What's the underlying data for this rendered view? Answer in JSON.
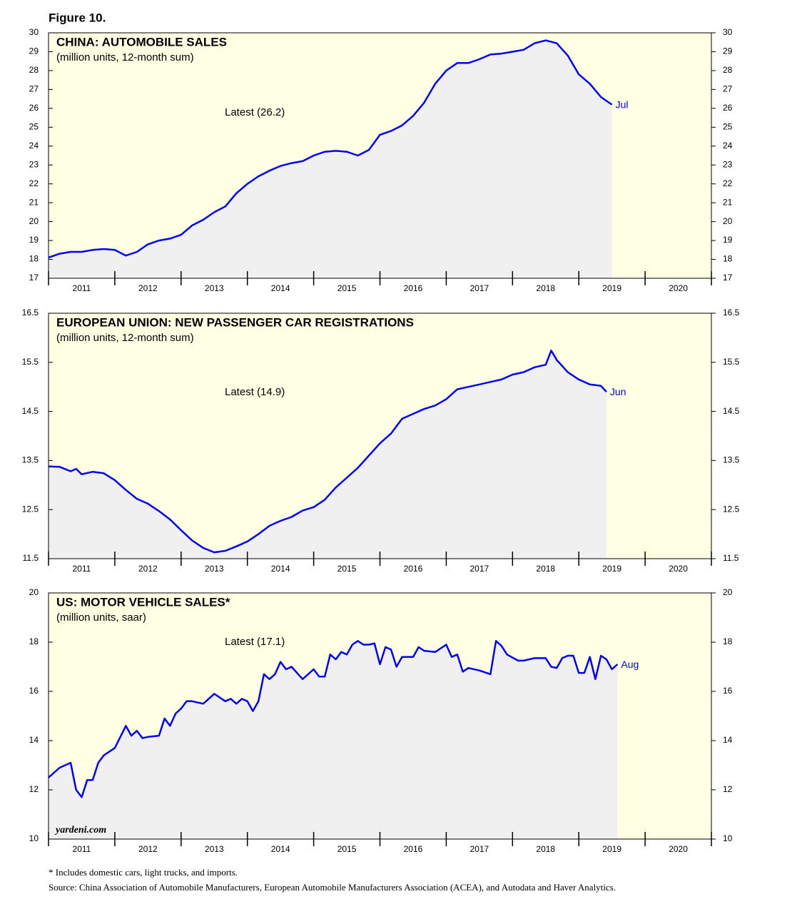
{
  "figure_title": "Figure 10.",
  "chart_data": [
    {
      "type": "line",
      "title": "CHINA: AUTOMOBILE SALES",
      "subtitle": "(million units, 12-month sum)",
      "annotation": "Latest (26.2)",
      "end_label": "Jul",
      "color": "#0000ff",
      "x": [
        "2011-01",
        "2011-03",
        "2011-05",
        "2011-07",
        "2011-09",
        "2011-11",
        "2012-01",
        "2012-03",
        "2012-05",
        "2012-07",
        "2012-09",
        "2012-11",
        "2013-01",
        "2013-03",
        "2013-05",
        "2013-07",
        "2013-09",
        "2013-11",
        "2014-01",
        "2014-03",
        "2014-05",
        "2014-07",
        "2014-09",
        "2014-11",
        "2015-01",
        "2015-03",
        "2015-05",
        "2015-07",
        "2015-09",
        "2015-11",
        "2016-01",
        "2016-03",
        "2016-05",
        "2016-07",
        "2016-09",
        "2016-11",
        "2017-01",
        "2017-03",
        "2017-05",
        "2017-07",
        "2017-09",
        "2017-11",
        "2018-01",
        "2018-03",
        "2018-05",
        "2018-07",
        "2018-09",
        "2018-11",
        "2019-01",
        "2019-03",
        "2019-05",
        "2019-07"
      ],
      "values": [
        18.1,
        18.3,
        18.4,
        18.4,
        18.5,
        18.55,
        18.5,
        18.2,
        18.4,
        18.8,
        19.0,
        19.1,
        19.3,
        19.8,
        20.1,
        20.5,
        20.8,
        21.5,
        22.0,
        22.4,
        22.7,
        22.95,
        23.1,
        23.2,
        23.5,
        23.7,
        23.75,
        23.7,
        23.5,
        23.8,
        24.6,
        24.8,
        25.1,
        25.6,
        26.3,
        27.3,
        28.0,
        28.4,
        28.4,
        28.6,
        28.85,
        28.9,
        29.0,
        29.1,
        29.45,
        29.6,
        29.45,
        28.8,
        27.8,
        27.3,
        26.6,
        26.2
      ],
      "xlim": [
        2011,
        2021
      ],
      "xticks": [
        2011,
        2012,
        2013,
        2014,
        2015,
        2016,
        2017,
        2018,
        2019,
        2020,
        2021
      ],
      "xtick_labels": [
        "2011",
        "2012",
        "2013",
        "2014",
        "2015",
        "2016",
        "2017",
        "2018",
        "2019",
        "2020"
      ],
      "ylim": [
        17,
        30
      ],
      "yticks": [
        17,
        18,
        19,
        20,
        21,
        22,
        23,
        24,
        25,
        26,
        27,
        28,
        29,
        30
      ]
    },
    {
      "type": "line",
      "title": "EUROPEAN UNION: NEW PASSENGER CAR REGISTRATIONS",
      "subtitle": "(million units, 12-month sum)",
      "annotation": "Latest (14.9)",
      "end_label": "Jun",
      "color": "#0000ff",
      "x": [
        "2011-01",
        "2011-03",
        "2011-05",
        "2011-06",
        "2011-07",
        "2011-09",
        "2011-11",
        "2012-01",
        "2012-03",
        "2012-05",
        "2012-07",
        "2012-09",
        "2012-11",
        "2013-01",
        "2013-03",
        "2013-05",
        "2013-07",
        "2013-09",
        "2013-11",
        "2014-01",
        "2014-03",
        "2014-05",
        "2014-07",
        "2014-09",
        "2014-11",
        "2015-01",
        "2015-03",
        "2015-05",
        "2015-07",
        "2015-09",
        "2015-11",
        "2016-01",
        "2016-03",
        "2016-05",
        "2016-07",
        "2016-09",
        "2016-11",
        "2017-01",
        "2017-03",
        "2017-05",
        "2017-07",
        "2017-09",
        "2017-11",
        "2018-01",
        "2018-03",
        "2018-05",
        "2018-07",
        "2018-08",
        "2018-09",
        "2018-11",
        "2019-01",
        "2019-03",
        "2019-05",
        "2019-06"
      ],
      "values": [
        13.38,
        13.37,
        13.28,
        13.33,
        13.22,
        13.27,
        13.24,
        13.1,
        12.9,
        12.72,
        12.62,
        12.47,
        12.3,
        12.08,
        11.87,
        11.72,
        11.63,
        11.66,
        11.75,
        11.85,
        12.0,
        12.17,
        12.27,
        12.35,
        12.48,
        12.55,
        12.7,
        12.95,
        13.15,
        13.35,
        13.6,
        13.85,
        14.05,
        14.35,
        14.45,
        14.55,
        14.62,
        14.75,
        14.95,
        15.0,
        15.05,
        15.1,
        15.15,
        15.25,
        15.3,
        15.4,
        15.45,
        15.74,
        15.55,
        15.3,
        15.15,
        15.05,
        15.02,
        14.9
      ],
      "xlim": [
        2011,
        2021
      ],
      "xticks": [
        2011,
        2012,
        2013,
        2014,
        2015,
        2016,
        2017,
        2018,
        2019,
        2020,
        2021
      ],
      "xtick_labels": [
        "2011",
        "2012",
        "2013",
        "2014",
        "2015",
        "2016",
        "2017",
        "2018",
        "2019",
        "2020"
      ],
      "ylim": [
        11.5,
        16.5
      ],
      "yticks": [
        11.5,
        12.5,
        13.5,
        14.5,
        15.5,
        16.5
      ]
    },
    {
      "type": "line",
      "title": "US: MOTOR VEHICLE SALES*",
      "subtitle": "(million units, saar)",
      "annotation": "Latest (17.1)",
      "end_label": "Aug",
      "color": "#0000ff",
      "x": [
        "2011-01",
        "2011-03",
        "2011-05",
        "2011-06",
        "2011-07",
        "2011-08",
        "2011-09",
        "2011-10",
        "2011-11",
        "2012-01",
        "2012-03",
        "2012-04",
        "2012-05",
        "2012-06",
        "2012-07",
        "2012-09",
        "2012-10",
        "2012-11",
        "2012-12",
        "2013-01",
        "2013-02",
        "2013-03",
        "2013-05",
        "2013-07",
        "2013-09",
        "2013-10",
        "2013-11",
        "2013-12",
        "2014-01",
        "2014-02",
        "2014-03",
        "2014-04",
        "2014-05",
        "2014-06",
        "2014-07",
        "2014-08",
        "2014-09",
        "2014-11",
        "2015-01",
        "2015-02",
        "2015-03",
        "2015-04",
        "2015-05",
        "2015-06",
        "2015-07",
        "2015-08",
        "2015-09",
        "2015-10",
        "2015-11",
        "2015-12",
        "2016-01",
        "2016-02",
        "2016-03",
        "2016-04",
        "2016-05",
        "2016-07",
        "2016-08",
        "2016-09",
        "2016-11",
        "2017-01",
        "2017-02",
        "2017-03",
        "2017-04",
        "2017-05",
        "2017-07",
        "2017-09",
        "2017-10",
        "2017-11",
        "2017-12",
        "2018-02",
        "2018-03",
        "2018-05",
        "2018-07",
        "2018-08",
        "2018-09",
        "2018-10",
        "2018-11",
        "2018-12",
        "2019-01",
        "2019-02",
        "2019-03",
        "2019-04",
        "2019-05",
        "2019-06",
        "2019-07",
        "2019-08"
      ],
      "values": [
        12.5,
        12.9,
        13.1,
        12.0,
        11.7,
        12.4,
        12.4,
        13.1,
        13.4,
        13.7,
        14.6,
        14.2,
        14.4,
        14.1,
        14.15,
        14.2,
        14.9,
        14.6,
        15.1,
        15.3,
        15.6,
        15.6,
        15.5,
        15.9,
        15.6,
        15.7,
        15.5,
        15.7,
        15.6,
        15.2,
        15.6,
        16.7,
        16.5,
        16.7,
        17.2,
        16.9,
        17.0,
        16.5,
        16.9,
        16.6,
        16.6,
        17.5,
        17.3,
        17.6,
        17.5,
        17.9,
        18.05,
        17.9,
        17.9,
        17.95,
        17.1,
        17.8,
        17.7,
        17.0,
        17.4,
        17.4,
        17.8,
        17.65,
        17.6,
        17.9,
        17.4,
        17.5,
        16.8,
        16.95,
        16.85,
        16.7,
        18.05,
        17.85,
        17.5,
        17.25,
        17.25,
        17.35,
        17.35,
        17.0,
        16.95,
        17.35,
        17.45,
        17.45,
        16.75,
        16.75,
        17.4,
        16.5,
        17.45,
        17.3,
        16.9,
        17.1
      ],
      "xlim": [
        2011,
        2021
      ],
      "xticks": [
        2011,
        2012,
        2013,
        2014,
        2015,
        2016,
        2017,
        2018,
        2019,
        2020,
        2021
      ],
      "xtick_labels": [
        "2011",
        "2012",
        "2013",
        "2014",
        "2015",
        "2016",
        "2017",
        "2018",
        "2019",
        "2020"
      ],
      "ylim": [
        10,
        20
      ],
      "yticks": [
        10,
        12,
        14,
        16,
        18,
        20
      ]
    }
  ],
  "watermark": "yardeni.com",
  "footnote": "* Includes domestic cars, light trucks, and imports.",
  "source": "Source: China Association of Automobile Manufacturers, European Automobile Manufacturers Association (ACEA), and Autodata and Haver Analytics."
}
